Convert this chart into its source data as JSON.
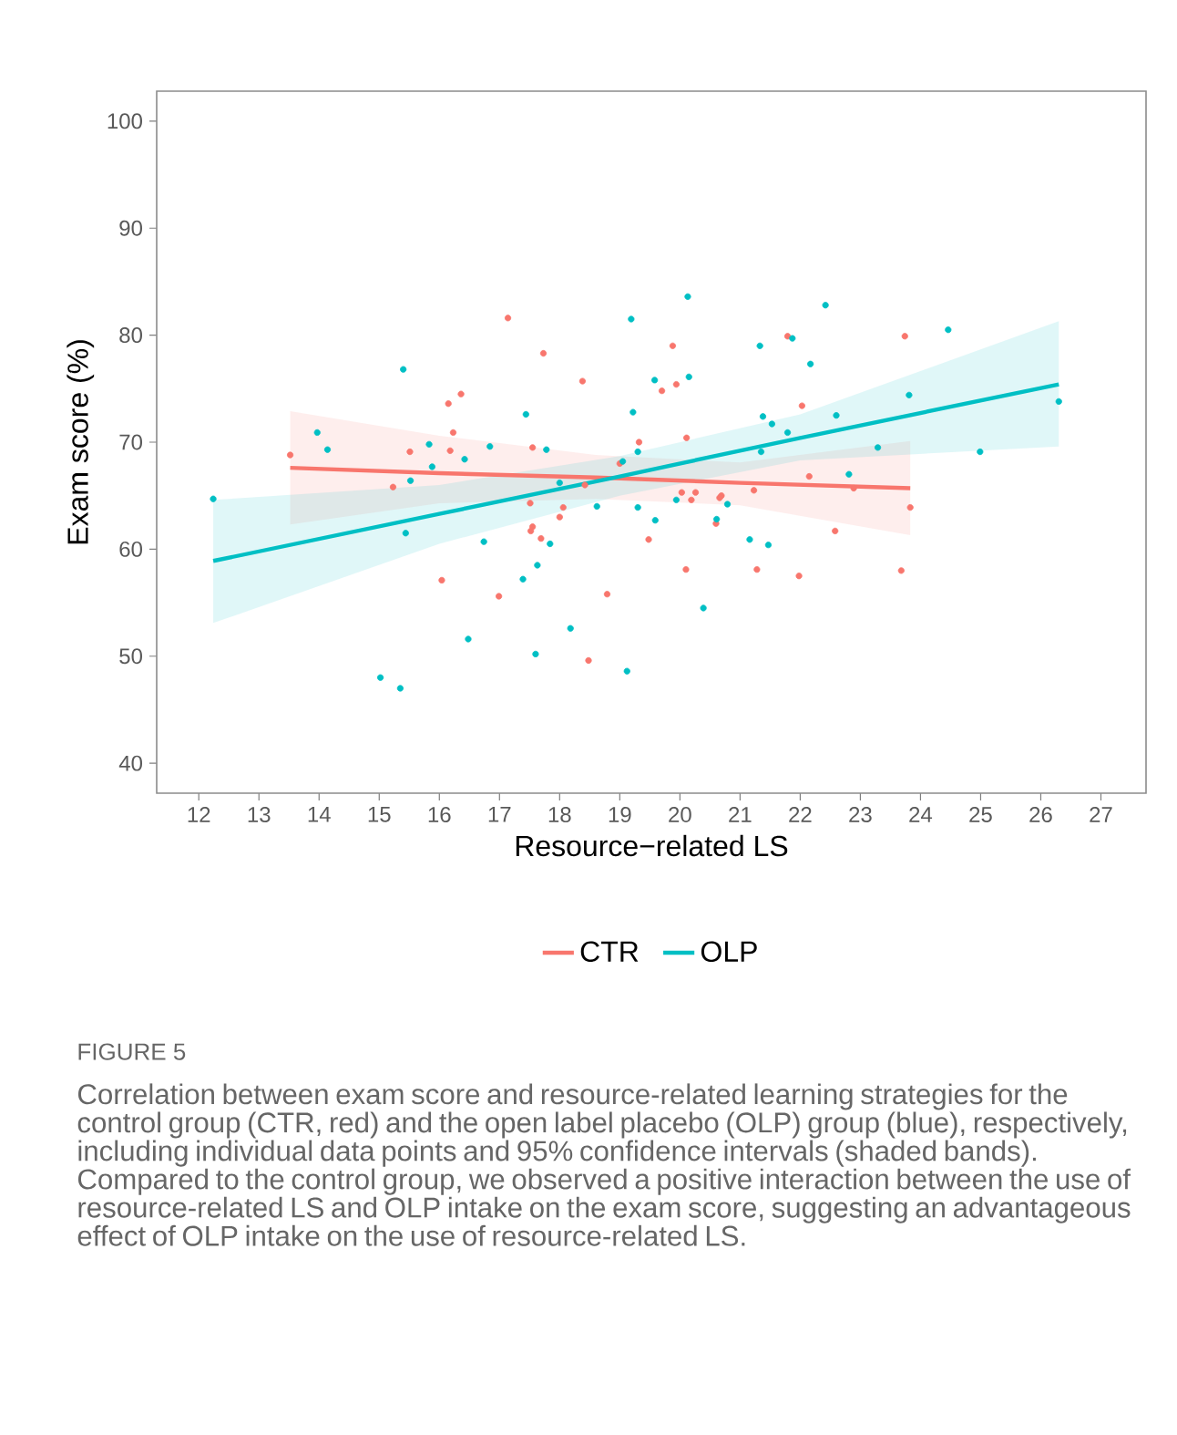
{
  "chart_data": {
    "type": "scatter",
    "xlabel": "Resource−related LS",
    "ylabel": "Exam score (%)",
    "xlim": [
      11.3,
      27.75
    ],
    "ylim": [
      37.2,
      102.8
    ],
    "xticks": [
      12,
      13,
      14,
      15,
      16,
      17,
      18,
      19,
      20,
      21,
      22,
      23,
      24,
      25,
      26,
      27
    ],
    "yticks": [
      40,
      50,
      60,
      70,
      80,
      90,
      100
    ],
    "grid": false,
    "legend": "bottom",
    "series": [
      {
        "color": "#f8766d",
        "marker": "circle",
        "x": [
          13.52,
          15.23,
          15.51,
          16.15,
          16.36,
          16.23,
          16.18,
          16.04,
          17.14,
          16.99,
          17.73,
          17.55,
          17.51,
          17.55,
          17.52,
          17.69,
          18.38,
          18.0,
          18.06,
          18.79,
          18.48,
          18.42,
          19.88,
          19.94,
          19.7,
          19.32,
          19.0,
          20.11,
          22.03,
          21.79,
          23.74,
          22.15,
          20.03,
          20.26,
          20.19,
          20.69,
          20.66,
          21.23,
          20.6,
          19.48,
          20.1,
          21.28,
          21.98,
          22.58,
          23.68,
          23.83,
          22.89
        ],
        "values": [
          68.8,
          65.8,
          69.1,
          73.6,
          74.5,
          70.9,
          69.2,
          57.1,
          81.6,
          55.6,
          78.3,
          69.5,
          64.3,
          62.1,
          61.7,
          61.0,
          75.7,
          63.0,
          63.9,
          55.8,
          49.6,
          66.0,
          79.0,
          75.4,
          74.8,
          70.0,
          68.0,
          70.4,
          73.4,
          79.9,
          79.9,
          66.8,
          65.3,
          65.3,
          64.6,
          65.0,
          64.8,
          65.5,
          62.4,
          60.9,
          58.1,
          58.1,
          57.5,
          61.7,
          58.0,
          63.9,
          65.7
        ]
      },
      {
        "color": "#00bfc4",
        "marker": "circle",
        "x": [
          12.24,
          13.97,
          14.14,
          15.4,
          15.52,
          15.44,
          15.83,
          15.88,
          16.42,
          16.84,
          16.74,
          16.48,
          15.02,
          15.35,
          17.44,
          17.78,
          17.39,
          17.63,
          17.84,
          17.6,
          18.18,
          18.62,
          18.0,
          20.13,
          19.19,
          22.42,
          24.46,
          21.87,
          21.33,
          22.17,
          20.15,
          19.58,
          19.22,
          21.38,
          21.53,
          22.6,
          21.79,
          23.81,
          26.3,
          19.3,
          19.05,
          21.35,
          23.29,
          24.99,
          22.81,
          19.3,
          19.59,
          19.94,
          20.61,
          20.79,
          21.16,
          21.47,
          20.39,
          19.12
        ],
        "values": [
          64.7,
          70.9,
          69.3,
          76.8,
          66.4,
          61.5,
          69.8,
          67.7,
          68.4,
          69.6,
          60.7,
          51.6,
          48.0,
          47.0,
          72.6,
          69.3,
          57.2,
          58.5,
          60.5,
          50.2,
          52.6,
          64.0,
          66.2,
          83.6,
          81.5,
          82.8,
          80.5,
          79.7,
          79.0,
          77.3,
          76.1,
          75.8,
          72.8,
          72.4,
          71.7,
          72.5,
          70.9,
          74.4,
          73.8,
          69.1,
          68.2,
          69.1,
          69.5,
          69.1,
          67.0,
          63.9,
          62.7,
          64.6,
          62.8,
          64.2,
          60.9,
          60.4,
          54.5,
          48.6
        ]
      },
      {
        "type": "line",
        "name": "CTR",
        "color": "#f8766d",
        "marker": "none",
        "line_style": "solid",
        "x": [
          13.52,
          16,
          18.6,
          21,
          23.83
        ],
        "values": [
          67.6,
          67.1,
          66.7,
          66.2,
          65.7
        ],
        "lower": [
          62.3,
          64.3,
          64.7,
          64.1,
          61.3
        ],
        "upper": [
          72.9,
          70.6,
          68.8,
          68.1,
          70.1
        ]
      },
      {
        "type": "line",
        "name": "OLP",
        "color": "#00bfc4",
        "marker": "none",
        "line_style": "solid",
        "x": [
          12.24,
          16,
          19,
          22,
          26.3
        ],
        "values": [
          58.9,
          63.3,
          66.8,
          70.4,
          75.4
        ],
        "lower": [
          53.1,
          60.5,
          65.0,
          68.3,
          69.6
        ],
        "upper": [
          64.6,
          66.0,
          68.7,
          72.6,
          81.3
        ]
      }
    ],
    "annotations": [
      "FIGURE 5",
      "Correlation between exam score and resource-related learning strategies for the control group (CTR, red) and the open label placebo (OLP) group (blue), respectively, including individual data points and 95% confidence intervals (shaded bands). Compared to the control group, we observed a positive interaction between the use of resource-related LS and OLP intake on the exam score, suggesting an advantageous effect of OLP intake on the use of resource-related LS."
    ]
  }
}
